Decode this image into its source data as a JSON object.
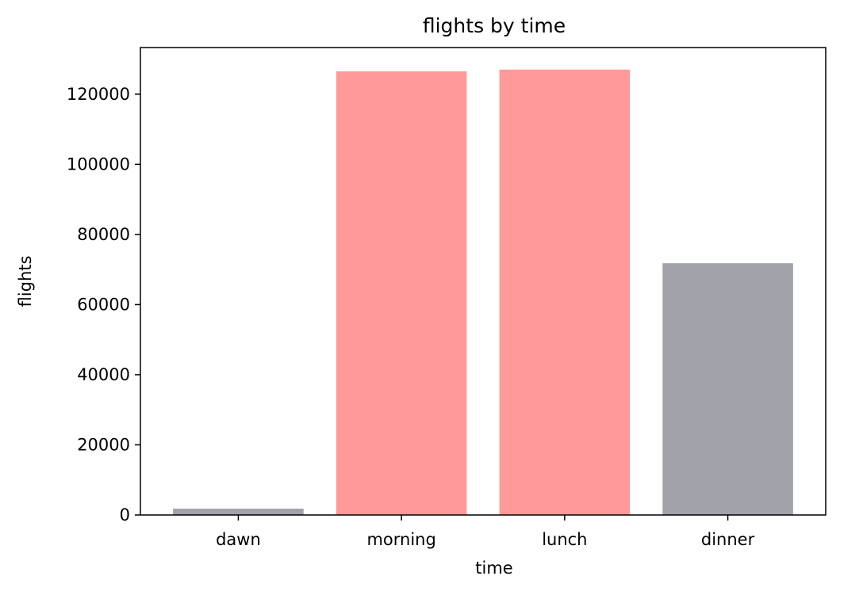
{
  "chart_data": {
    "type": "bar",
    "title": "flights by time",
    "xlabel": "time",
    "ylabel": "flights",
    "categories": [
      "dawn",
      "morning",
      "lunch",
      "dinner"
    ],
    "values": [
      1800,
      126500,
      127000,
      71800
    ],
    "bar_colors": [
      "#a2a2ab",
      "#ff999a",
      "#ff999a",
      "#a2a2ab"
    ],
    "ylim": [
      0,
      133300
    ],
    "yticks": [
      0,
      20000,
      40000,
      60000,
      80000,
      100000,
      120000
    ],
    "ytick_labels": [
      "0",
      "20000",
      "40000",
      "60000",
      "80000",
      "100000",
      "120000"
    ],
    "grid": false,
    "legend": false
  }
}
